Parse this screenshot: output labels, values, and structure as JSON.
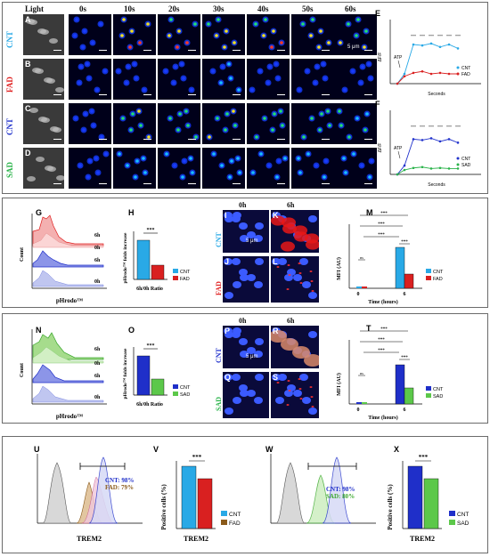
{
  "top": {
    "col_headers": [
      "Light",
      "0s",
      "10s",
      "20s",
      "30s",
      "40s",
      "50s",
      "60s"
    ],
    "row_labels": [
      {
        "letter": "A",
        "group": "CNT",
        "color": "#29a9e6"
      },
      {
        "letter": "B",
        "group": "FAD",
        "color": "#e02020"
      },
      {
        "letter": "C",
        "group": "CNT",
        "color": "#2233cc"
      },
      {
        "letter": "D",
        "group": "SAD",
        "color": "#2ab34a"
      }
    ],
    "scale_label": "5 μm"
  },
  "chart_E": {
    "letter": "E",
    "ylabel": "ΔF/F",
    "xlabel": "Seconds",
    "annotation": "ATP",
    "legend": [
      "CNT",
      "FAD"
    ],
    "sig": "***"
  },
  "chart_F": {
    "letter": "F",
    "ylabel": "ΔF/F",
    "xlabel": "Seconds",
    "annotation": "ATP",
    "legend": [
      "CNT",
      "SAD"
    ],
    "sig": "***"
  },
  "mid1": {
    "G": {
      "letter": "G",
      "ylabel": "Count",
      "xlabel": "pHrodo™",
      "tags": [
        "6h",
        "0h",
        "6h",
        "0h"
      ]
    },
    "H": {
      "letter": "H",
      "ylabel": "pHrodo™ folds increase",
      "xlabel": "6h/0h Ratio",
      "sig": "***",
      "legend": [
        "CNT",
        "FAD"
      ]
    },
    "I_L": {
      "letters": [
        "I",
        "K",
        "J",
        "L"
      ],
      "col_headers": [
        "0h",
        "6h"
      ],
      "rows": [
        "CNT",
        "FAD"
      ],
      "scale_label": "5 μm"
    },
    "M": {
      "letter": "M",
      "ylabel": "MFI (AU)",
      "xlabel": "Time (hours)",
      "ticks_x": [
        "0",
        "6"
      ],
      "legend": [
        "CNT",
        "FAD"
      ],
      "sig": "***",
      "ns": "ns"
    }
  },
  "mid2": {
    "N": {
      "letter": "N",
      "ylabel": "Count",
      "xlabel": "pHrodo™",
      "tags": [
        "6h",
        "0h",
        "6h",
        "0h"
      ]
    },
    "O": {
      "letter": "O",
      "ylabel": "pHrodo™ folds increase",
      "xlabel": "6h/0h Ratio",
      "sig": "***",
      "legend": [
        "CNT",
        "SAD"
      ]
    },
    "P_S": {
      "letters": [
        "P",
        "R",
        "Q",
        "S"
      ],
      "col_headers": [
        "0h",
        "6h"
      ],
      "rows": [
        "CNT",
        "SAD"
      ],
      "scale_label": "5 μm"
    },
    "T": {
      "letter": "T",
      "ylabel": "MFI (AU)",
      "xlabel": "Time (hours)",
      "ticks_x": [
        "0",
        "6"
      ],
      "legend": [
        "CNT",
        "SAD"
      ],
      "sig": "***",
      "ns": "ns"
    }
  },
  "bottom": {
    "U": {
      "letter": "U",
      "xlabel": "TREM2",
      "cnt_text": "CNT: 98%",
      "other_text": "FAD: 79%"
    },
    "V": {
      "letter": "V",
      "ylabel": "Positive cells (%)",
      "xlabel": "TREM2",
      "sig": "***",
      "legend": [
        "CNT",
        "FAD"
      ]
    },
    "W": {
      "letter": "W",
      "cnt_text": "CNT: 98%",
      "other_text": "SAD: 80%"
    },
    "X": {
      "letter": "X",
      "ylabel": "Positive cells (%)",
      "xlabel": "TREM2",
      "sig": "***",
      "legend": [
        "CNT",
        "SAD"
      ]
    }
  },
  "colors": {
    "cnt_light": "#29a9e6",
    "cnt_dark": "#1f2fc9",
    "fad": "#d92020",
    "sad": "#5cc84a",
    "fad_brown": "#8a5a1a"
  }
}
